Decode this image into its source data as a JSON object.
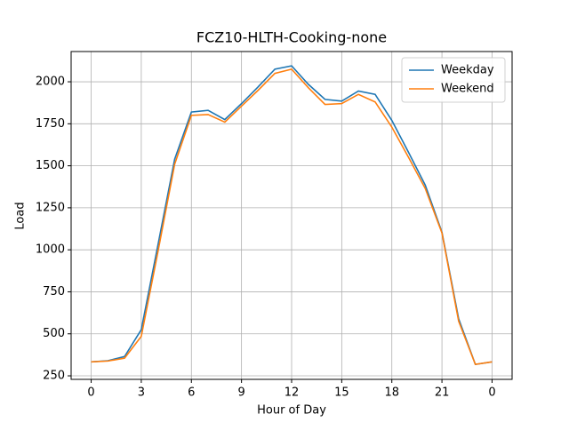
{
  "chart_data": {
    "type": "line",
    "title": "FCZ10-HLTH-Cooking-none",
    "xlabel": "Hour of Day",
    "ylabel": "Load",
    "x": [
      0,
      1,
      2,
      3,
      4,
      5,
      6,
      7,
      8,
      9,
      10,
      11,
      12,
      13,
      14,
      15,
      16,
      17,
      18,
      19,
      20,
      21,
      22,
      23,
      24
    ],
    "series": [
      {
        "name": "Weekday",
        "color": "#1f77b4",
        "values": [
          333,
          340,
          365,
          525,
          1030,
          1540,
          1820,
          1830,
          1775,
          1870,
          1970,
          2075,
          2095,
          1985,
          1895,
          1885,
          1945,
          1925,
          1770,
          1580,
          1385,
          1105,
          590,
          318,
          333
        ]
      },
      {
        "name": "Weekend",
        "color": "#ff7f0e",
        "values": [
          333,
          338,
          355,
          485,
          990,
          1510,
          1800,
          1805,
          1760,
          1855,
          1950,
          2050,
          2075,
          1965,
          1865,
          1870,
          1925,
          1880,
          1730,
          1550,
          1365,
          1100,
          575,
          318,
          333
        ]
      }
    ],
    "xlim": [
      -1.2,
      25.2
    ],
    "xticks": [
      0,
      3,
      6,
      9,
      12,
      15,
      18,
      21,
      {
        "value": 24,
        "label": "0"
      }
    ],
    "ylim": [
      229,
      2180
    ],
    "yticks": [
      250,
      500,
      750,
      1000,
      1250,
      1500,
      1750,
      2000
    ],
    "grid": true,
    "legend": "upper-right"
  }
}
